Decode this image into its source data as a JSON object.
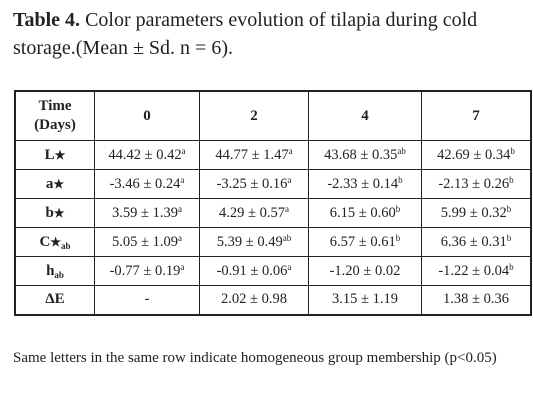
{
  "caption": {
    "label": "Table 4.",
    "text": " Color parameters evolution of tilapia during cold storage.(Mean ± Sd. n = 6)."
  },
  "table": {
    "header": {
      "time_line1": "Time",
      "time_line2": "(Days)",
      "days": [
        "0",
        "2",
        "4",
        "7"
      ]
    },
    "rows": [
      {
        "label": "L",
        "label_suffix": "★",
        "label_sub": "",
        "cells": [
          {
            "v": "44.42 ± 0.42",
            "sup": "a"
          },
          {
            "v": "44.77 ± 1.47",
            "sup": "a"
          },
          {
            "v": "43.68 ± 0.35",
            "sup": "ab"
          },
          {
            "v": "42.69 ± 0.34",
            "sup": "b"
          }
        ]
      },
      {
        "label": "a",
        "label_suffix": "★",
        "label_sub": "",
        "cells": [
          {
            "v": "-3.46 ± 0.24",
            "sup": "a"
          },
          {
            "v": "-3.25 ± 0.16",
            "sup": "a"
          },
          {
            "v": "-2.33 ± 0.14",
            "sup": "b"
          },
          {
            "v": "-2.13 ± 0.26",
            "sup": "b"
          }
        ]
      },
      {
        "label": "b",
        "label_suffix": "★",
        "label_sub": "",
        "cells": [
          {
            "v": "3.59 ± 1.39",
            "sup": "a"
          },
          {
            "v": "4.29 ± 0.57",
            "sup": "a"
          },
          {
            "v": "6.15 ± 0.60",
            "sup": "b"
          },
          {
            "v": "5.99 ± 0.32",
            "sup": "b"
          }
        ]
      },
      {
        "label": "C",
        "label_suffix": "★",
        "label_sub": "ab",
        "cells": [
          {
            "v": "5.05 ± 1.09",
            "sup": "a"
          },
          {
            "v": "5.39 ± 0.49",
            "sup": "ab"
          },
          {
            "v": "6.57 ± 0.61",
            "sup": "b"
          },
          {
            "v": "6.36 ± 0.31",
            "sup": "b"
          }
        ]
      },
      {
        "label": "h",
        "label_suffix": "",
        "label_sub": "ab",
        "cells": [
          {
            "v": "-0.77 ± 0.19",
            "sup": "a"
          },
          {
            "v": "-0.91 ± 0.06",
            "sup": "a"
          },
          {
            "v": "-1.20 ± 0.02",
            "sup": ""
          },
          {
            "v": "-1.22 ± 0.04",
            "sup": "b"
          }
        ]
      },
      {
        "label": "ΔE",
        "label_suffix": "",
        "label_sub": "",
        "cells": [
          {
            "v": "-",
            "sup": ""
          },
          {
            "v": "2.02 ± 0.98",
            "sup": ""
          },
          {
            "v": "3.15 ± 1.19",
            "sup": ""
          },
          {
            "v": "1.38 ± 0.36",
            "sup": ""
          }
        ]
      }
    ]
  },
  "footnote": "Same letters in the same row indicate homogeneous group membership (p<0.05)"
}
